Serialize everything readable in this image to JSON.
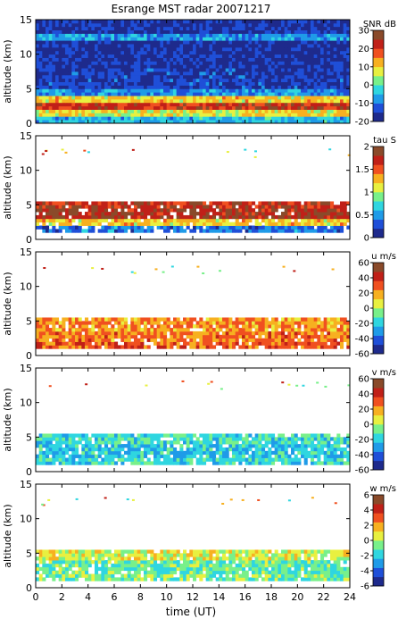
{
  "figure": {
    "title": "Esrange MST radar 20071217",
    "xlabel": "time (UT)"
  },
  "chart_data": [
    {
      "type": "heatmap",
      "title": "Esrange MST radar 20071217",
      "xlabel": "",
      "ylabel": "altitude (km)",
      "xlim": [
        0,
        24
      ],
      "ylim": [
        0,
        15
      ],
      "x_ticks": [
        "0",
        "2",
        "4",
        "6",
        "8",
        "10",
        "12",
        "14",
        "16",
        "18",
        "20",
        "22",
        "24"
      ],
      "y_ticks": [
        "0",
        "5",
        "10",
        "15"
      ],
      "colorbar": {
        "label": "SNR dB",
        "range": [
          -20,
          30
        ],
        "ticks": [
          "30",
          "20",
          "10",
          "0",
          "-10",
          "-20"
        ]
      },
      "background": "full",
      "layers": [
        {
          "alt": [
            0,
            1
          ],
          "value": -5
        },
        {
          "alt": [
            1,
            2
          ],
          "value": 8
        },
        {
          "alt": [
            2,
            3
          ],
          "value": 22
        },
        {
          "alt": [
            3,
            4
          ],
          "value": 10
        },
        {
          "alt": [
            4,
            5
          ],
          "value": -8
        },
        {
          "alt": [
            5,
            8
          ],
          "value": -15
        },
        {
          "alt": [
            8,
            12
          ],
          "value": -17
        },
        {
          "alt": [
            12,
            13
          ],
          "value": -8
        },
        {
          "alt": [
            13,
            15
          ],
          "value": -16
        }
      ]
    },
    {
      "type": "heatmap",
      "title": "",
      "xlabel": "",
      "ylabel": "altitude (km)",
      "xlim": [
        0,
        24
      ],
      "ylim": [
        0,
        15
      ],
      "x_ticks": [],
      "y_ticks": [
        "0",
        "5",
        "10",
        "15"
      ],
      "colorbar": {
        "label": "tau S",
        "range": [
          0,
          2
        ],
        "ticks": [
          "2",
          "1.5",
          "1",
          "0.5",
          "0"
        ]
      },
      "background": "sparse",
      "layers": [
        {
          "alt": [
            1,
            2
          ],
          "value": 0.4
        },
        {
          "alt": [
            2,
            3
          ],
          "value": 1.2
        },
        {
          "alt": [
            3,
            4.5
          ],
          "value": 1.8
        },
        {
          "alt": [
            4.5,
            5.5
          ],
          "value": 1.7
        }
      ]
    },
    {
      "type": "heatmap",
      "title": "",
      "xlabel": "",
      "ylabel": "altitude (km)",
      "xlim": [
        0,
        24
      ],
      "ylim": [
        0,
        15
      ],
      "x_ticks": [],
      "y_ticks": [
        "0",
        "5",
        "10",
        "15"
      ],
      "colorbar": {
        "label": "u m/s",
        "range": [
          -60,
          60
        ],
        "ticks": [
          "60",
          "40",
          "20",
          "0",
          "-20",
          "-40",
          "-60"
        ]
      },
      "background": "sparse",
      "layers": [
        {
          "alt": [
            1,
            2
          ],
          "value": 30
        },
        {
          "alt": [
            2,
            3.5
          ],
          "value": 25
        },
        {
          "alt": [
            3.5,
            5.5
          ],
          "value": 22
        }
      ]
    },
    {
      "type": "heatmap",
      "title": "",
      "xlabel": "",
      "ylabel": "altitude (km)",
      "xlim": [
        0,
        24
      ],
      "ylim": [
        0,
        15
      ],
      "x_ticks": [],
      "y_ticks": [
        "0",
        "5",
        "10",
        "15"
      ],
      "colorbar": {
        "label": "v m/s",
        "range": [
          -60,
          60
        ],
        "ticks": [
          "60",
          "40",
          "20",
          "0",
          "-20",
          "-40",
          "-60"
        ]
      },
      "background": "sparse",
      "layers": [
        {
          "alt": [
            1,
            2
          ],
          "value": -18
        },
        {
          "alt": [
            2,
            4
          ],
          "value": -22
        },
        {
          "alt": [
            4,
            5.5
          ],
          "value": -15
        }
      ]
    },
    {
      "type": "heatmap",
      "title": "",
      "xlabel": "time (UT)",
      "ylabel": "altitude (km)",
      "xlim": [
        0,
        24
      ],
      "ylim": [
        0,
        15
      ],
      "x_ticks": [
        "0",
        "2",
        "4",
        "6",
        "8",
        "10",
        "12",
        "14",
        "16",
        "18",
        "20",
        "22",
        "24"
      ],
      "y_ticks": [
        "0",
        "5",
        "10",
        "15"
      ],
      "colorbar": {
        "label": "w m/s",
        "range": [
          -6,
          6
        ],
        "ticks": [
          "6",
          "4",
          "2",
          "0",
          "-2",
          "-4",
          "-6"
        ]
      },
      "background": "sparse",
      "layers": [
        {
          "alt": [
            1,
            2
          ],
          "value": -0.5
        },
        {
          "alt": [
            2,
            4
          ],
          "value": -1
        },
        {
          "alt": [
            4,
            5.5
          ],
          "value": 0.5
        }
      ]
    }
  ],
  "colors": {
    "colormap": [
      "#1e2a8c",
      "#1f4fd8",
      "#1f9be8",
      "#2fd6e0",
      "#78f08a",
      "#e8f040",
      "#f7b020",
      "#f05020",
      "#c02018",
      "#8a4a2a"
    ]
  }
}
